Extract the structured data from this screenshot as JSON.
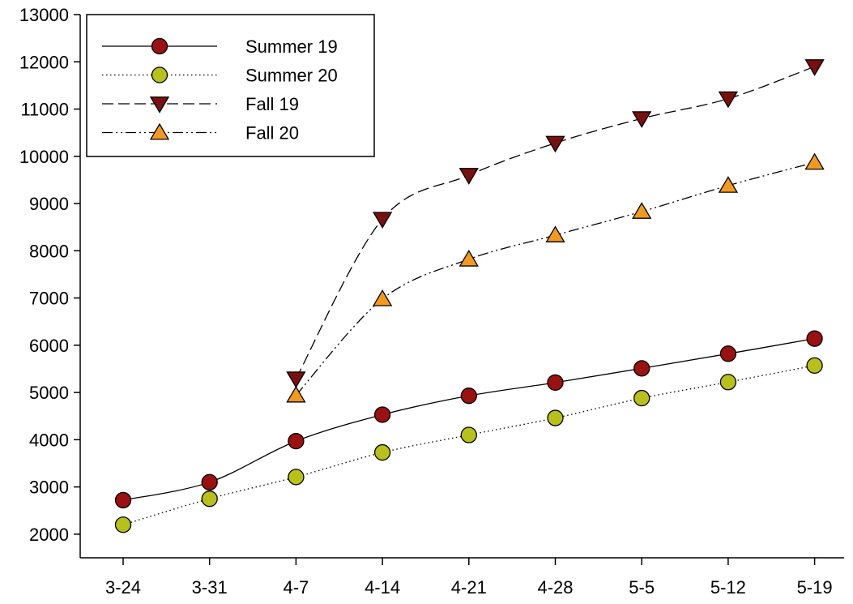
{
  "chart_data": {
    "type": "line",
    "title": "",
    "xlabel": "",
    "ylabel": "",
    "categories": [
      "3-24",
      "3-31",
      "4-7",
      "4-14",
      "4-21",
      "4-28",
      "5-5",
      "5-12",
      "5-19"
    ],
    "ylim": [
      1500,
      13000
    ],
    "yticks": [
      2000,
      3000,
      4000,
      5000,
      6000,
      7000,
      8000,
      9000,
      10000,
      11000,
      12000,
      13000
    ],
    "grid": false,
    "legend_position": "top-left",
    "series": [
      {
        "name": "Summer 19",
        "values": [
          2720,
          3100,
          3970,
          4530,
          4930,
          5210,
          5510,
          5820,
          6140
        ],
        "line_style": "solid",
        "marker": "circle",
        "marker_color": "#9B1010"
      },
      {
        "name": "Summer 20",
        "values": [
          2200,
          2750,
          3210,
          3730,
          4100,
          4460,
          4880,
          5220,
          5570
        ],
        "line_style": "dotted",
        "marker": "circle",
        "marker_color": "#B8C01A"
      },
      {
        "name": "Fall 19",
        "values": [
          null,
          null,
          5290,
          8670,
          9600,
          10280,
          10800,
          11220,
          11900
        ],
        "line_style": "dashed",
        "marker": "triangle-down",
        "marker_color": "#7A0F0F"
      },
      {
        "name": "Fall 20",
        "values": [
          null,
          null,
          4940,
          6980,
          7820,
          8330,
          8830,
          9380,
          9870
        ],
        "line_style": "dash-dot-dot",
        "marker": "triangle-up",
        "marker_color": "#F39A1E"
      }
    ]
  }
}
